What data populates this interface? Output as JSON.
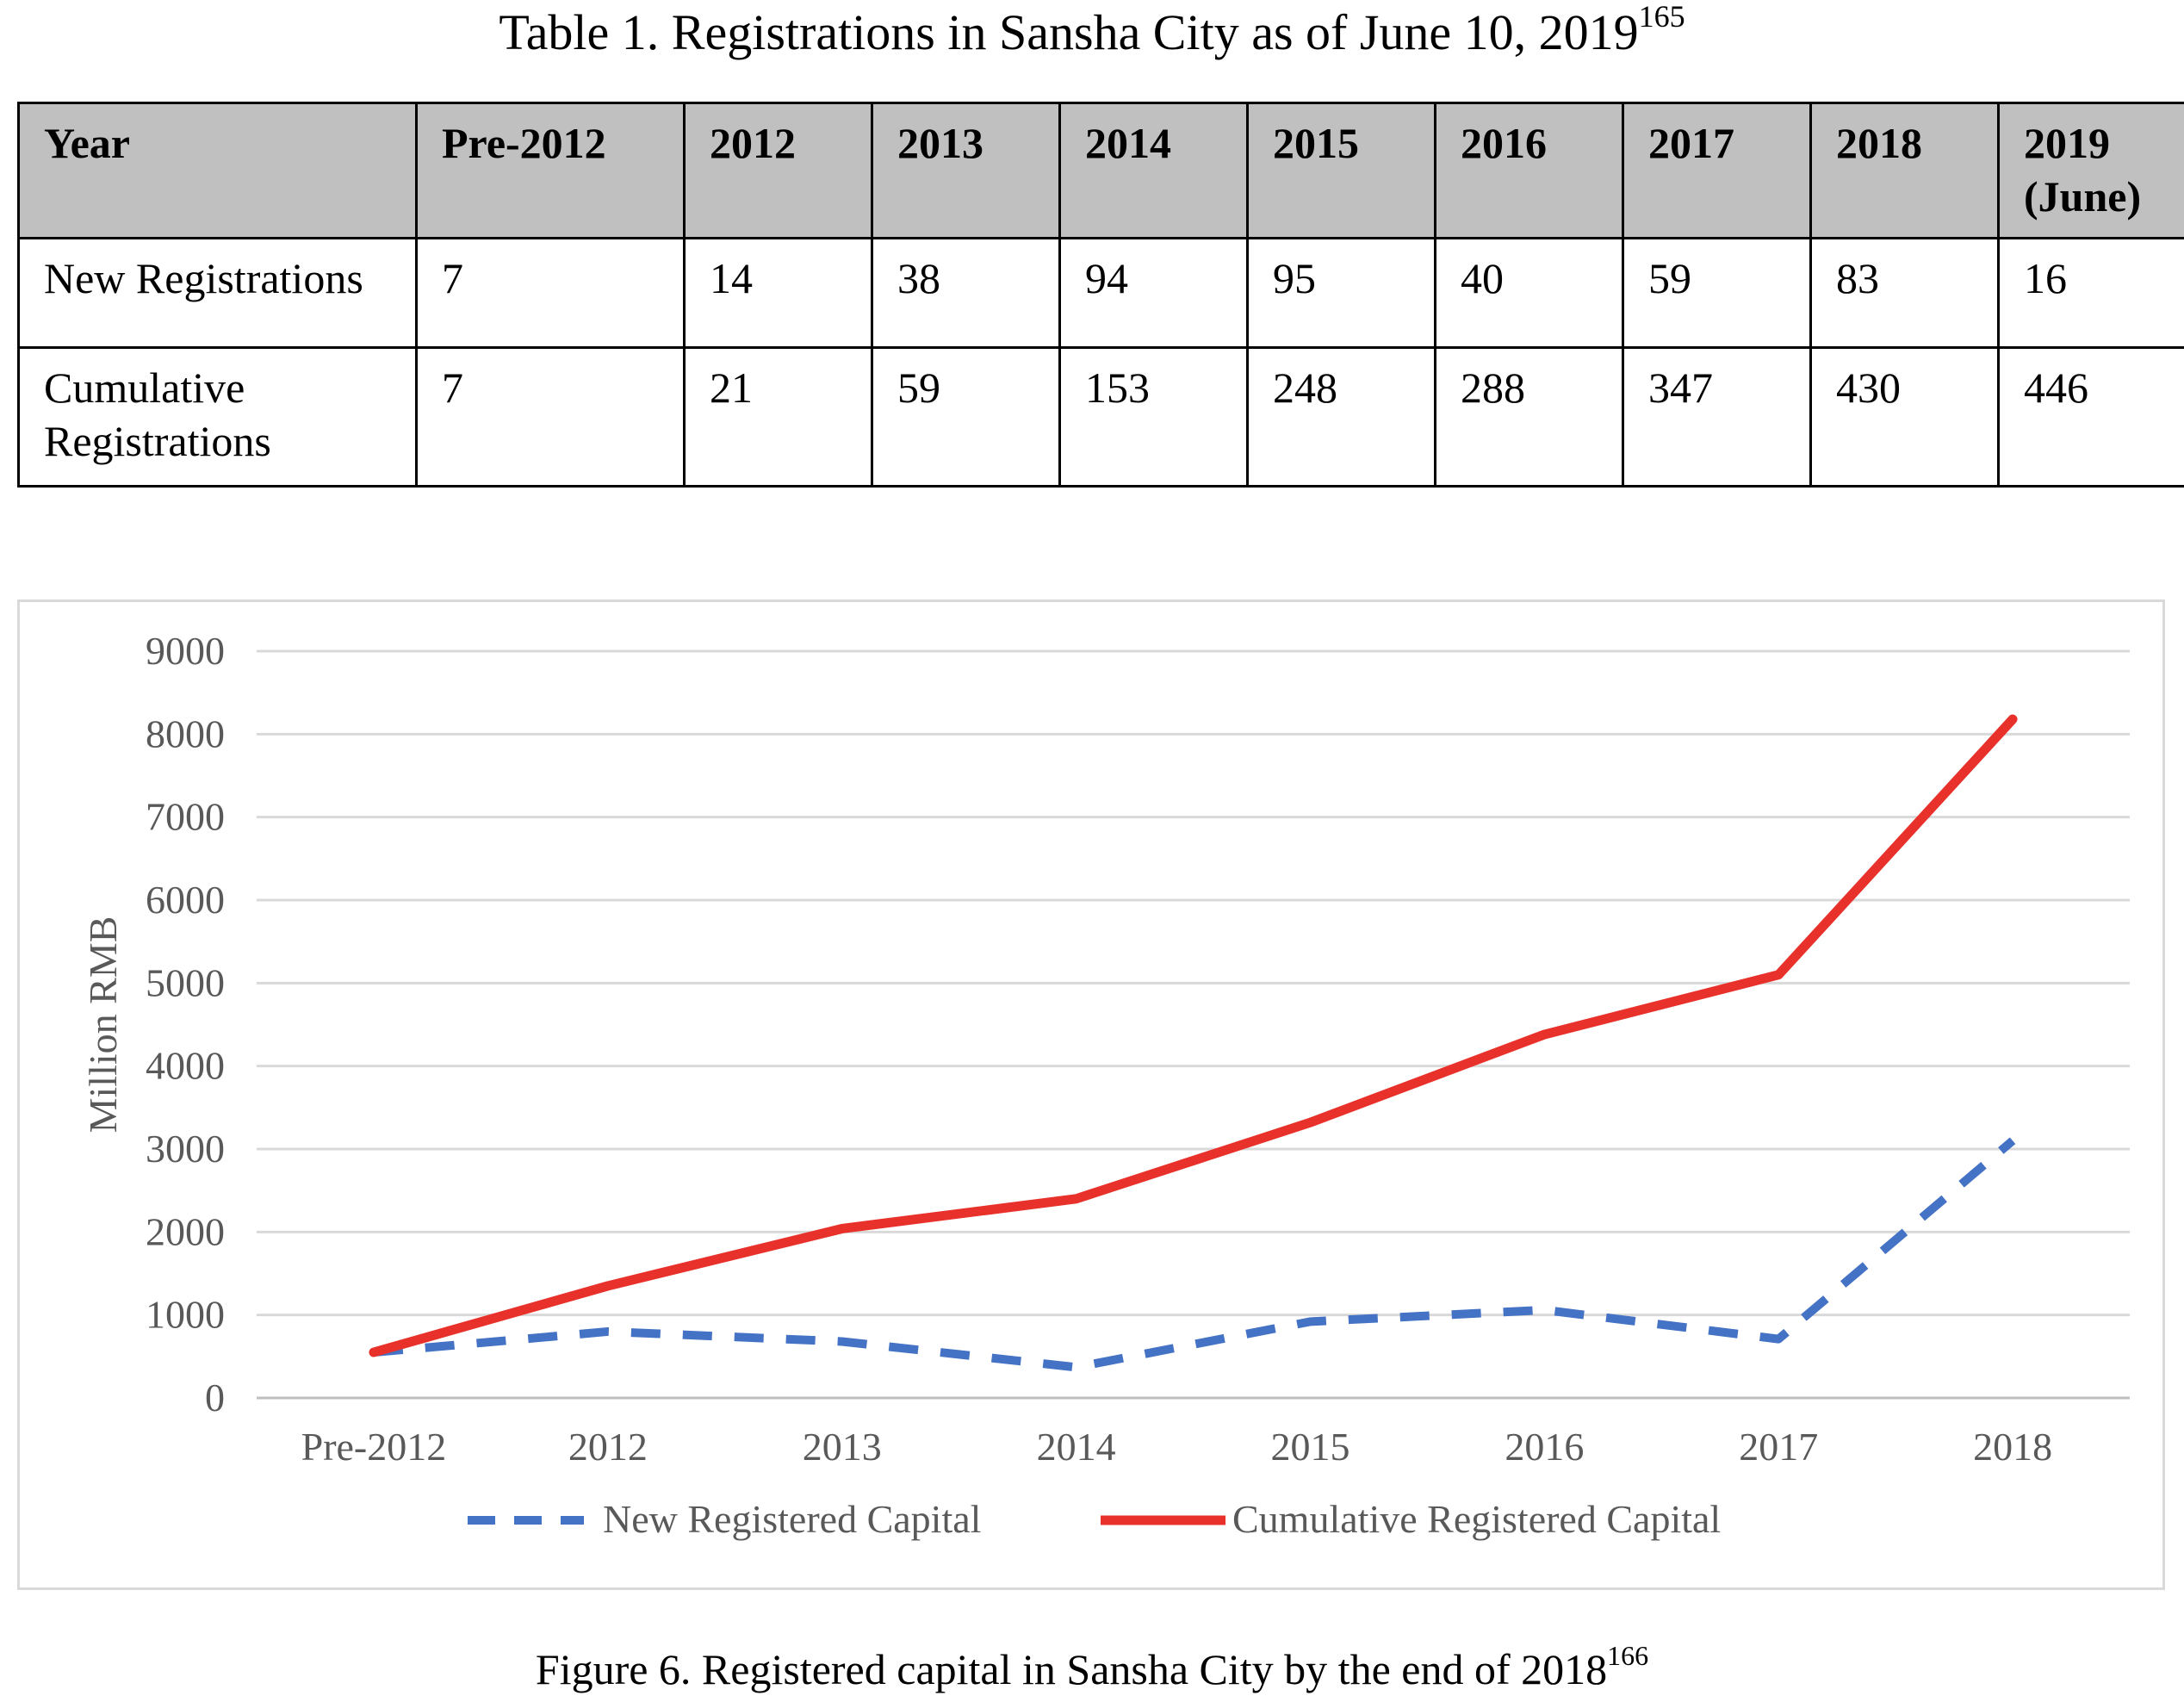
{
  "table": {
    "title": "Table 1. Registrations in Sansha City as of June 10, 2019",
    "title_sup": "165",
    "header_label": "Year",
    "columns": [
      [
        "Pre-2012"
      ],
      [
        "2012"
      ],
      [
        "2013"
      ],
      [
        "2014"
      ],
      [
        "2015"
      ],
      [
        "2016"
      ],
      [
        "2017"
      ],
      [
        "2018"
      ],
      [
        "2019",
        "(June)"
      ]
    ],
    "rows": [
      {
        "label": [
          "New Registrations"
        ],
        "values": [
          "7",
          "14",
          "38",
          "94",
          "95",
          "40",
          "59",
          "83",
          "16"
        ]
      },
      {
        "label": [
          "Cumulative",
          "Registrations"
        ],
        "values": [
          "7",
          "21",
          "59",
          "153",
          "248",
          "288",
          "347",
          "430",
          "446"
        ]
      }
    ],
    "header_color": "#c0c0c0"
  },
  "chart_data": {
    "type": "line",
    "title": "",
    "xlabel": "",
    "ylabel": "Million RMB",
    "categories": [
      "Pre-2012",
      "2012",
      "2013",
      "2014",
      "2015",
      "2016",
      "2017",
      "2018"
    ],
    "ylim": [
      0,
      9000
    ],
    "yticks": [
      "0",
      "1000",
      "2000",
      "3000",
      "4000",
      "5000",
      "6000",
      "7000",
      "8000",
      "9000"
    ],
    "grid": "horizontal",
    "legend_position": "bottom",
    "series": [
      {
        "name": "New Registered Capital",
        "values": [
          550,
          800,
          680,
          370,
          920,
          1060,
          710,
          3100
        ],
        "color": "#4472c4",
        "style": "dashed"
      },
      {
        "name": "Cumulative Registered Capital",
        "values": [
          550,
          1350,
          2040,
          2400,
          3320,
          4380,
          5100,
          8180
        ],
        "color": "#e8312a",
        "style": "solid"
      }
    ]
  },
  "figure": {
    "caption": "Figure 6. Registered capital in Sansha City by the end of 2018",
    "caption_sup": "166"
  }
}
